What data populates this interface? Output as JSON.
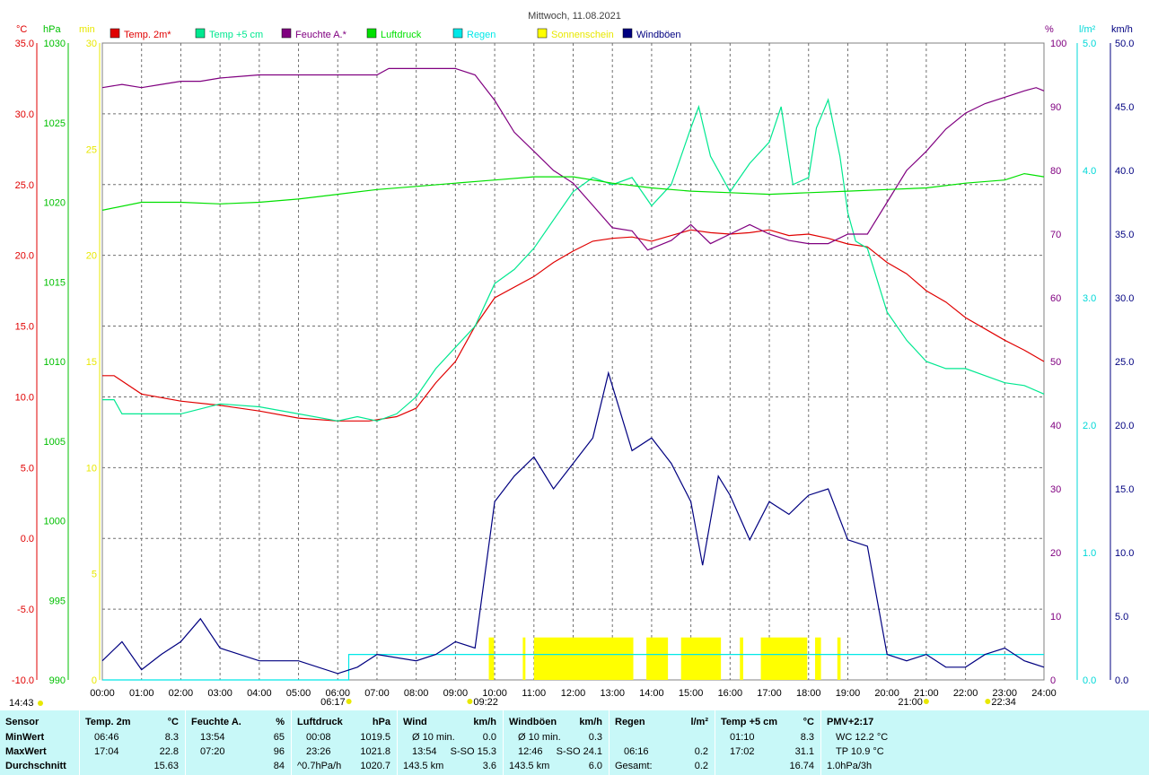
{
  "title": "Mittwoch, 11.08.2021",
  "axis_units": {
    "temp": "°C",
    "pressure": "hPa",
    "sun": "min",
    "humidity": "%",
    "rain": "l/m²",
    "wind": "km/h"
  },
  "colors": {
    "temp2m": "#e00000",
    "temp5cm": "#00e890",
    "humidity": "#800080",
    "pressure": "#00e000",
    "rain": "#00e8e8",
    "sun": "#ffff00",
    "gust": "#000080"
  },
  "chart_data": {
    "type": "line",
    "title": "Mittwoch, 11.08.2021",
    "x_ticks": [
      "00:00",
      "01:00",
      "02:00",
      "03:00",
      "04:00",
      "05:00",
      "06:00",
      "07:00",
      "08:00",
      "09:00",
      "10:00",
      "11:00",
      "12:00",
      "13:00",
      "14:00",
      "15:00",
      "16:00",
      "17:00",
      "18:00",
      "19:00",
      "20:00",
      "21:00",
      "22:00",
      "23:00",
      "24:00"
    ],
    "axes": {
      "temp": {
        "range": [
          -10,
          35
        ],
        "ticks": [
          "35.0",
          "30.0",
          "25.0",
          "20.0",
          "15.0",
          "10.0",
          "5.0",
          "0.0",
          "-5.0",
          "-10.0"
        ]
      },
      "pressure": {
        "range": [
          990,
          1030
        ],
        "ticks": [
          "1030",
          "1025",
          "1020",
          "1015",
          "1010",
          "1005",
          "1000",
          "995",
          "990"
        ]
      },
      "sun": {
        "range": [
          0,
          30
        ],
        "ticks": [
          "30",
          "25",
          "20",
          "15",
          "10",
          "5",
          "0"
        ]
      },
      "humidity": {
        "range": [
          0,
          100
        ],
        "ticks": [
          "100",
          "90",
          "80",
          "70",
          "60",
          "50",
          "40",
          "30",
          "20",
          "10",
          "0"
        ]
      },
      "rain": {
        "range": [
          0,
          5
        ],
        "ticks": [
          "5.0",
          "4.0",
          "3.0",
          "2.0",
          "1.0",
          "0.0"
        ]
      },
      "wind": {
        "range": [
          0,
          50
        ],
        "ticks": [
          "50.0",
          "45.0",
          "40.0",
          "35.0",
          "30.0",
          "25.0",
          "20.0",
          "15.0",
          "10.0",
          "5.0",
          "0.0"
        ]
      }
    },
    "legend": [
      "Temp. 2m*",
      "Temp +5 cm",
      "Feuchte A.*",
      "Luftdruck",
      "Regen",
      "Sonnenschein",
      "Windböen"
    ],
    "series": [
      {
        "name": "Temp. 2m*",
        "axis": "temp",
        "x": [
          0,
          0.3,
          1,
          2,
          3,
          4,
          5,
          6,
          6.8,
          7.5,
          8,
          8.5,
          9,
          9.5,
          10,
          11,
          11.5,
          12,
          12.5,
          13,
          13.5,
          14,
          14.5,
          15,
          15.5,
          16,
          16.5,
          17,
          17.5,
          18,
          18.5,
          19,
          19.5,
          20,
          20.5,
          21,
          21.5,
          22,
          22.5,
          23,
          23.5,
          24
        ],
        "y": [
          11.5,
          11.5,
          10.2,
          9.7,
          9.4,
          9.0,
          8.5,
          8.3,
          8.3,
          8.6,
          9.2,
          11.0,
          12.5,
          15.0,
          17.0,
          18.5,
          19.5,
          20.3,
          21.0,
          21.2,
          21.3,
          21.0,
          21.4,
          21.8,
          21.6,
          21.5,
          21.6,
          21.8,
          21.4,
          21.5,
          21.2,
          20.8,
          20.6,
          19.5,
          18.7,
          17.5,
          16.7,
          15.6,
          14.8,
          14.0,
          13.3,
          12.5
        ]
      },
      {
        "name": "Temp +5 cm",
        "axis": "temp",
        "x": [
          0,
          0.3,
          0.5,
          1,
          2,
          3,
          4,
          5,
          6,
          6.5,
          7,
          7.5,
          8,
          8.5,
          9,
          9.5,
          10,
          10.5,
          11,
          11.5,
          12,
          12.5,
          13,
          13.5,
          14,
          14.5,
          15,
          15.2,
          15.5,
          16,
          16.5,
          17,
          17.3,
          17.6,
          18,
          18.2,
          18.5,
          18.8,
          19,
          19.2,
          19.5,
          20,
          20.5,
          21,
          21.5,
          22,
          22.5,
          23,
          23.5,
          24
        ],
        "y": [
          9.8,
          9.8,
          8.8,
          8.8,
          8.8,
          9.5,
          9.3,
          8.8,
          8.3,
          8.6,
          8.3,
          8.8,
          10.0,
          12.0,
          13.5,
          15.0,
          18.0,
          19.0,
          20.5,
          22.5,
          24.5,
          25.5,
          25.0,
          25.5,
          23.5,
          25.0,
          29.0,
          30.5,
          27.0,
          24.5,
          26.5,
          28.0,
          30.5,
          25.0,
          25.5,
          29.0,
          31.0,
          27.0,
          23.0,
          21.0,
          20.5,
          16.0,
          14.0,
          12.5,
          12.0,
          12.0,
          11.5,
          11.0,
          10.8,
          10.2
        ]
      },
      {
        "name": "Feuchte A.*",
        "axis": "humidity",
        "x": [
          0,
          0.5,
          1,
          1.5,
          2,
          2.5,
          3,
          4,
          5,
          6,
          7,
          7.3,
          8,
          9,
          9.5,
          10,
          10.5,
          11,
          11.5,
          12,
          12.5,
          13,
          13.5,
          13.9,
          14.5,
          15,
          15.5,
          16,
          16.5,
          17,
          17.5,
          18,
          18.5,
          19,
          19.5,
          20,
          20.5,
          21,
          21.5,
          22,
          22.5,
          23,
          23.5,
          23.8,
          24
        ],
        "y": [
          93.0,
          93.5,
          93.0,
          93.5,
          94.0,
          94.0,
          94.5,
          95.0,
          95.0,
          95.0,
          95.0,
          96.0,
          96.0,
          96.0,
          95.0,
          91.0,
          86.0,
          83.0,
          80.0,
          78.0,
          74.5,
          71.0,
          70.5,
          67.5,
          69.0,
          71.5,
          68.5,
          70.0,
          71.5,
          70.0,
          69.0,
          68.5,
          68.5,
          70.0,
          70.0,
          75.0,
          80.0,
          83.0,
          86.5,
          89.0,
          90.5,
          91.5,
          92.5,
          93.0,
          92.5
        ]
      },
      {
        "name": "Luftdruck",
        "axis": "pressure",
        "x": [
          0,
          1,
          2,
          3,
          4,
          5,
          6,
          7,
          8,
          9,
          10,
          11,
          12,
          13,
          14,
          15,
          16,
          17,
          18,
          19,
          20,
          21,
          22,
          23,
          23.5,
          24
        ],
        "y": [
          1019.5,
          1020.0,
          1020.0,
          1019.9,
          1020.0,
          1020.2,
          1020.5,
          1020.8,
          1021.0,
          1021.2,
          1021.4,
          1021.6,
          1021.6,
          1021.2,
          1020.9,
          1020.7,
          1020.6,
          1020.5,
          1020.6,
          1020.7,
          1020.8,
          1020.9,
          1021.2,
          1021.4,
          1021.8,
          1021.6
        ]
      },
      {
        "name": "Regen",
        "axis": "rain",
        "x": [
          0,
          6.28,
          6.28,
          24
        ],
        "y": [
          0,
          0,
          0.2,
          0.2
        ]
      },
      {
        "name": "Windböen",
        "axis": "wind",
        "x": [
          0,
          0.5,
          1,
          1.5,
          2,
          2.5,
          3,
          4,
          5,
          6,
          6.5,
          7,
          8,
          8.5,
          9,
          9.5,
          10,
          10.5,
          11,
          11.5,
          12,
          12.5,
          12.9,
          13.5,
          14,
          14.5,
          15,
          15.3,
          15.7,
          16,
          16.5,
          17,
          17.5,
          18,
          18.5,
          19,
          19.5,
          20,
          20.5,
          21,
          21.5,
          22,
          22.5,
          23,
          23.5,
          24
        ],
        "y": [
          1.5,
          3.0,
          0.8,
          2.0,
          3.0,
          4.8,
          2.5,
          1.5,
          1.5,
          0.5,
          1.0,
          2.0,
          1.5,
          2.0,
          3.0,
          2.5,
          14.0,
          16.0,
          17.5,
          15.0,
          17.0,
          19.0,
          24.1,
          18.0,
          19.0,
          17.0,
          14.0,
          9.0,
          16.0,
          14.5,
          11.0,
          14.0,
          13.0,
          14.5,
          15.0,
          11.0,
          10.5,
          2.0,
          1.5,
          2.0,
          1.0,
          1.0,
          2.0,
          2.5,
          1.5,
          1.0
        ]
      }
    ],
    "sunshine": {
      "name": "Sonnenschein",
      "axis": "sun",
      "intervals": [
        [
          "09:51",
          "09:59"
        ],
        [
          "10:43",
          "10:47"
        ],
        [
          "11:00",
          "13:32"
        ],
        [
          "13:52",
          "14:25"
        ],
        [
          "14:45",
          "15:46"
        ],
        [
          "16:15",
          "16:20"
        ],
        [
          "16:47",
          "17:58"
        ],
        [
          "18:10",
          "18:19"
        ],
        [
          "18:44",
          "18:49"
        ]
      ],
      "level": 2
    },
    "sunrise": "06:17",
    "sunset": "21:00",
    "moon_left": "14:43",
    "moon_rise": "09:22",
    "moon_set": "22:34"
  },
  "summary": {
    "row_labels": [
      "Sensor",
      "MinWert",
      "MaxWert",
      "Durchschnitt"
    ],
    "columns": [
      {
        "title": "Temp. 2m",
        "unit": "°C",
        "min": [
          "06:46",
          "8.3"
        ],
        "max": [
          "17:04",
          "22.8"
        ],
        "avg": [
          "",
          "15.63"
        ]
      },
      {
        "title": "Feuchte A.",
        "unit": "%",
        "min": [
          "13:54",
          "65"
        ],
        "max": [
          "07:20",
          "96"
        ],
        "avg": [
          "",
          "84"
        ]
      },
      {
        "title": "Luftdruck",
        "unit": "hPa",
        "min": [
          "00:08",
          "1019.5"
        ],
        "max": [
          "23:26",
          "1021.8"
        ],
        "avg": [
          "^0.7hPa/h",
          "1020.7"
        ]
      },
      {
        "title": "Wind",
        "unit": "km/h",
        "min": [
          "Ø 10 min.",
          "0.0"
        ],
        "max": [
          "13:54",
          "S-SO 15.3"
        ],
        "avg": [
          "143.5 km",
          "3.6"
        ]
      },
      {
        "title": "Windböen",
        "unit": "km/h",
        "min": [
          "Ø 10 min.",
          "0.3"
        ],
        "max": [
          "12:46",
          "S-SO 24.1"
        ],
        "avg": [
          "143.5 km",
          "6.0"
        ]
      },
      {
        "title": "Regen",
        "unit": "l/m²",
        "min": [
          "",
          ""
        ],
        "max": [
          "06:16",
          "0.2"
        ],
        "avg": [
          "Gesamt:",
          "0.2"
        ]
      },
      {
        "title": "Temp +5 cm",
        "unit": "°C",
        "min": [
          "01:10",
          "8.3"
        ],
        "max": [
          "17:02",
          "31.1"
        ],
        "avg": [
          "",
          "16.74"
        ]
      },
      {
        "title": "PMV+2:17",
        "unit": "",
        "min": [
          "WC 12.2 °C",
          ""
        ],
        "max": [
          "TP 10.9 °C",
          ""
        ],
        "avg": [
          "1.0hPa/3h",
          ""
        ]
      }
    ]
  }
}
